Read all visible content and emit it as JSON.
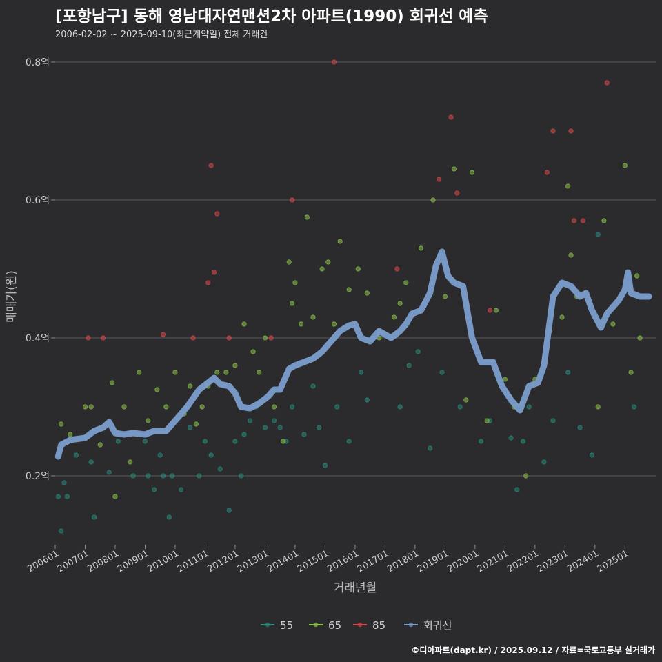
{
  "chart_data": {
    "type": "scatter",
    "title": "[포항남구] 동해 영남대자연맨션2차 아파트(1990) 회귀선 예측",
    "subtitle": "2006-02-02 ~ 2025-09-10(최근계약일) 전체 거래건",
    "xlabel": "거래년월",
    "ylabel": "매매가(원)",
    "ylim": [
      0.1,
      0.83
    ],
    "xlim": [
      2006.0,
      2026.05
    ],
    "y_ticks": [
      0.2,
      0.4,
      0.6,
      0.8
    ],
    "y_tick_labels": [
      "0.2억",
      "0.4억",
      "0.6억",
      "0.8억"
    ],
    "x_tick_values": [
      2006,
      2007,
      2008,
      2009,
      2010,
      2011,
      2012,
      2013,
      2014,
      2015,
      2016,
      2017,
      2018,
      2019,
      2020,
      2021,
      2022,
      2023,
      2024,
      2025
    ],
    "x_tick_labels": [
      "200601",
      "200701",
      "200801",
      "200901",
      "201001",
      "201101",
      "201201",
      "201301",
      "201401",
      "201501",
      "201601",
      "201701",
      "201801",
      "201901",
      "202001",
      "202101",
      "202201",
      "202301",
      "202401",
      "202501"
    ],
    "legend_position": "bottom",
    "series": [
      {
        "name": "55",
        "color": "#2a8a7c",
        "points": [
          [
            2006.1,
            0.17
          ],
          [
            2006.2,
            0.12
          ],
          [
            2006.3,
            0.19
          ],
          [
            2006.4,
            0.17
          ],
          [
            2006.7,
            0.23
          ],
          [
            2007.2,
            0.22
          ],
          [
            2007.3,
            0.14
          ],
          [
            2007.8,
            0.205
          ],
          [
            2008.1,
            0.25
          ],
          [
            2008.6,
            0.2
          ],
          [
            2009.0,
            0.25
          ],
          [
            2009.1,
            0.2
          ],
          [
            2009.3,
            0.18
          ],
          [
            2009.5,
            0.23
          ],
          [
            2009.6,
            0.2
          ],
          [
            2009.8,
            0.14
          ],
          [
            2009.9,
            0.2
          ],
          [
            2010.2,
            0.18
          ],
          [
            2010.5,
            0.27
          ],
          [
            2010.8,
            0.2
          ],
          [
            2011.0,
            0.25
          ],
          [
            2011.2,
            0.23
          ],
          [
            2011.5,
            0.21
          ],
          [
            2011.8,
            0.15
          ],
          [
            2012.0,
            0.25
          ],
          [
            2012.2,
            0.2
          ],
          [
            2012.3,
            0.26
          ],
          [
            2012.5,
            0.28
          ],
          [
            2012.7,
            0.3
          ],
          [
            2013.0,
            0.27
          ],
          [
            2013.3,
            0.28
          ],
          [
            2013.5,
            0.27
          ],
          [
            2013.7,
            0.25
          ],
          [
            2013.9,
            0.3
          ],
          [
            2014.3,
            0.26
          ],
          [
            2014.6,
            0.33
          ],
          [
            2014.8,
            0.27
          ],
          [
            2015.0,
            0.215
          ],
          [
            2015.4,
            0.3
          ],
          [
            2015.8,
            0.25
          ],
          [
            2016.2,
            0.35
          ],
          [
            2016.4,
            0.31
          ],
          [
            2017.5,
            0.3
          ],
          [
            2017.8,
            0.36
          ],
          [
            2018.1,
            0.38
          ],
          [
            2018.5,
            0.24
          ],
          [
            2018.9,
            0.35
          ],
          [
            2019.5,
            0.3
          ],
          [
            2020.2,
            0.25
          ],
          [
            2020.5,
            0.28
          ],
          [
            2021.2,
            0.255
          ],
          [
            2021.4,
            0.18
          ],
          [
            2021.6,
            0.25
          ],
          [
            2021.8,
            0.3
          ],
          [
            2022.3,
            0.22
          ],
          [
            2022.6,
            0.28
          ],
          [
            2023.1,
            0.35
          ],
          [
            2023.5,
            0.27
          ],
          [
            2023.9,
            0.23
          ],
          [
            2024.1,
            0.55
          ],
          [
            2025.3,
            0.3
          ]
        ]
      },
      {
        "name": "65",
        "color": "#8bc34a",
        "points": [
          [
            2006.2,
            0.275
          ],
          [
            2006.5,
            0.26
          ],
          [
            2007.0,
            0.3
          ],
          [
            2007.2,
            0.3
          ],
          [
            2007.5,
            0.245
          ],
          [
            2007.9,
            0.335
          ],
          [
            2008.0,
            0.17
          ],
          [
            2008.3,
            0.3
          ],
          [
            2008.5,
            0.22
          ],
          [
            2008.8,
            0.35
          ],
          [
            2009.1,
            0.28
          ],
          [
            2009.4,
            0.325
          ],
          [
            2009.7,
            0.3
          ],
          [
            2010.0,
            0.35
          ],
          [
            2010.3,
            0.29
          ],
          [
            2010.5,
            0.33
          ],
          [
            2010.7,
            0.275
          ],
          [
            2010.9,
            0.3
          ],
          [
            2011.1,
            0.33
          ],
          [
            2011.4,
            0.35
          ],
          [
            2011.7,
            0.35
          ],
          [
            2012.0,
            0.36
          ],
          [
            2012.3,
            0.42
          ],
          [
            2012.6,
            0.38
          ],
          [
            2012.8,
            0.35
          ],
          [
            2013.0,
            0.4
          ],
          [
            2013.3,
            0.3
          ],
          [
            2013.6,
            0.25
          ],
          [
            2013.8,
            0.51
          ],
          [
            2013.9,
            0.45
          ],
          [
            2014.0,
            0.48
          ],
          [
            2014.2,
            0.42
          ],
          [
            2014.4,
            0.575
          ],
          [
            2014.6,
            0.43
          ],
          [
            2014.9,
            0.5
          ],
          [
            2015.1,
            0.51
          ],
          [
            2015.3,
            0.42
          ],
          [
            2015.5,
            0.54
          ],
          [
            2015.8,
            0.47
          ],
          [
            2016.1,
            0.5
          ],
          [
            2016.4,
            0.465
          ],
          [
            2016.8,
            0.4
          ],
          [
            2017.3,
            0.43
          ],
          [
            2017.5,
            0.45
          ],
          [
            2017.7,
            0.48
          ],
          [
            2018.2,
            0.53
          ],
          [
            2018.6,
            0.6
          ],
          [
            2019.0,
            0.46
          ],
          [
            2019.3,
            0.645
          ],
          [
            2019.7,
            0.31
          ],
          [
            2019.9,
            0.64
          ],
          [
            2020.4,
            0.28
          ],
          [
            2020.7,
            0.44
          ],
          [
            2021.0,
            0.34
          ],
          [
            2021.3,
            0.3
          ],
          [
            2021.7,
            0.2
          ],
          [
            2022.0,
            0.34
          ],
          [
            2022.5,
            0.41
          ],
          [
            2022.9,
            0.43
          ],
          [
            2023.1,
            0.62
          ],
          [
            2023.2,
            0.52
          ],
          [
            2023.4,
            0.46
          ],
          [
            2023.8,
            0.45
          ],
          [
            2024.1,
            0.3
          ],
          [
            2024.3,
            0.57
          ],
          [
            2024.6,
            0.42
          ],
          [
            2025.0,
            0.65
          ],
          [
            2025.2,
            0.35
          ],
          [
            2025.4,
            0.49
          ],
          [
            2025.5,
            0.4
          ]
        ]
      },
      {
        "name": "85",
        "color": "#d94848",
        "points": [
          [
            2007.1,
            0.4
          ],
          [
            2007.6,
            0.4
          ],
          [
            2009.6,
            0.405
          ],
          [
            2010.6,
            0.4
          ],
          [
            2011.1,
            0.48
          ],
          [
            2011.2,
            0.65
          ],
          [
            2011.3,
            0.495
          ],
          [
            2011.4,
            0.58
          ],
          [
            2011.8,
            0.4
          ],
          [
            2013.2,
            0.4
          ],
          [
            2013.9,
            0.6
          ],
          [
            2015.3,
            0.8
          ],
          [
            2017.4,
            0.5
          ],
          [
            2018.8,
            0.63
          ],
          [
            2019.2,
            0.72
          ],
          [
            2019.4,
            0.61
          ],
          [
            2020.5,
            0.44
          ],
          [
            2022.4,
            0.64
          ],
          [
            2022.6,
            0.7
          ],
          [
            2023.2,
            0.7
          ],
          [
            2023.3,
            0.57
          ],
          [
            2023.6,
            0.57
          ],
          [
            2024.4,
            0.77
          ]
        ]
      }
    ],
    "regression": {
      "name": "회귀선",
      "color": "#7b9dcc",
      "points": [
        [
          2006.1,
          0.228
        ],
        [
          2006.2,
          0.245
        ],
        [
          2006.5,
          0.252
        ],
        [
          2007.0,
          0.255
        ],
        [
          2007.3,
          0.265
        ],
        [
          2007.6,
          0.27
        ],
        [
          2007.8,
          0.278
        ],
        [
          2008.0,
          0.262
        ],
        [
          2008.3,
          0.26
        ],
        [
          2008.6,
          0.262
        ],
        [
          2009.0,
          0.26
        ],
        [
          2009.3,
          0.265
        ],
        [
          2009.7,
          0.265
        ],
        [
          2010.0,
          0.28
        ],
        [
          2010.4,
          0.3
        ],
        [
          2010.8,
          0.325
        ],
        [
          2011.1,
          0.335
        ],
        [
          2011.3,
          0.342
        ],
        [
          2011.5,
          0.333
        ],
        [
          2011.8,
          0.33
        ],
        [
          2012.0,
          0.32
        ],
        [
          2012.2,
          0.3
        ],
        [
          2012.5,
          0.298
        ],
        [
          2012.8,
          0.305
        ],
        [
          2013.1,
          0.315
        ],
        [
          2013.3,
          0.325
        ],
        [
          2013.5,
          0.325
        ],
        [
          2013.8,
          0.355
        ],
        [
          2014.0,
          0.36
        ],
        [
          2014.3,
          0.365
        ],
        [
          2014.6,
          0.37
        ],
        [
          2014.9,
          0.38
        ],
        [
          2015.2,
          0.395
        ],
        [
          2015.5,
          0.41
        ],
        [
          2015.8,
          0.418
        ],
        [
          2016.0,
          0.42
        ],
        [
          2016.2,
          0.4
        ],
        [
          2016.5,
          0.395
        ],
        [
          2016.8,
          0.41
        ],
        [
          2017.2,
          0.4
        ],
        [
          2017.5,
          0.41
        ],
        [
          2017.7,
          0.42
        ],
        [
          2017.9,
          0.435
        ],
        [
          2018.2,
          0.44
        ],
        [
          2018.5,
          0.465
        ],
        [
          2018.7,
          0.505
        ],
        [
          2018.9,
          0.525
        ],
        [
          2019.1,
          0.49
        ],
        [
          2019.3,
          0.48
        ],
        [
          2019.6,
          0.475
        ],
        [
          2019.9,
          0.4
        ],
        [
          2020.2,
          0.365
        ],
        [
          2020.6,
          0.365
        ],
        [
          2020.9,
          0.33
        ],
        [
          2021.2,
          0.31
        ],
        [
          2021.5,
          0.295
        ],
        [
          2021.8,
          0.33
        ],
        [
          2022.1,
          0.335
        ],
        [
          2022.3,
          0.36
        ],
        [
          2022.6,
          0.46
        ],
        [
          2022.9,
          0.48
        ],
        [
          2023.2,
          0.475
        ],
        [
          2023.5,
          0.46
        ],
        [
          2023.7,
          0.465
        ],
        [
          2023.9,
          0.44
        ],
        [
          2024.2,
          0.415
        ],
        [
          2024.4,
          0.435
        ],
        [
          2024.6,
          0.445
        ],
        [
          2024.8,
          0.455
        ],
        [
          2025.0,
          0.47
        ],
        [
          2025.1,
          0.495
        ],
        [
          2025.2,
          0.465
        ],
        [
          2025.5,
          0.46
        ],
        [
          2025.8,
          0.46
        ]
      ]
    }
  },
  "footer": "©디아파트(dapt.kr) / 2025.09.12 / 자료=국토교통부 실거래가"
}
